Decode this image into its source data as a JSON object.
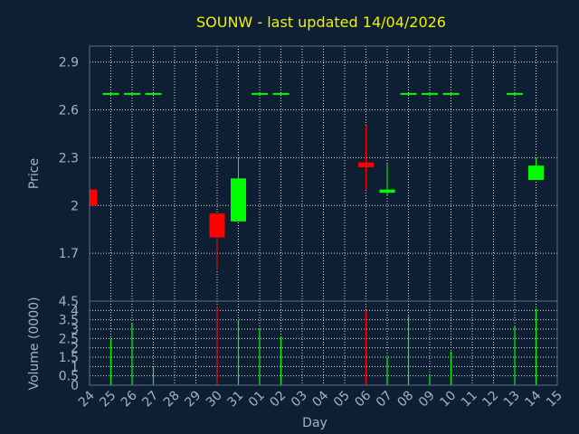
{
  "chart_data": [
    {
      "type": "candlestick",
      "title": "SOUNW - last updated 14/04/2026",
      "ylabel": "Price",
      "ylim": [
        1.4,
        3.0
      ],
      "yticks": [
        "1.7",
        "2",
        "2.3",
        "2.6",
        "2.9"
      ],
      "grid": true,
      "colors": {
        "up": "#00ff00",
        "down": "#ff0000",
        "text": "#9fb3c8",
        "title": "#f0f000",
        "background": "#0f1f33"
      },
      "candles": [
        {
          "day": "24",
          "open": 2.1,
          "high": 2.1,
          "low": 2.0,
          "close": 2.0
        },
        {
          "day": "25",
          "open": 2.7,
          "high": 2.7,
          "low": 2.7,
          "close": 2.7
        },
        {
          "day": "26",
          "open": 2.7,
          "high": 2.7,
          "low": 2.7,
          "close": 2.7
        },
        {
          "day": "27",
          "open": 2.7,
          "high": 2.7,
          "low": 2.7,
          "close": 2.7
        },
        {
          "day": "30",
          "open": 1.95,
          "high": 1.95,
          "low": 1.6,
          "close": 1.8
        },
        {
          "day": "31",
          "open": 1.9,
          "high": 2.3,
          "low": 1.9,
          "close": 2.17
        },
        {
          "day": "01",
          "open": 2.7,
          "high": 2.7,
          "low": 2.7,
          "close": 2.7
        },
        {
          "day": "02",
          "open": 2.7,
          "high": 2.7,
          "low": 2.7,
          "close": 2.7
        },
        {
          "day": "06",
          "open": 2.27,
          "high": 2.5,
          "low": 2.1,
          "close": 2.24
        },
        {
          "day": "07",
          "open": 2.08,
          "high": 2.26,
          "low": 2.06,
          "close": 2.1
        },
        {
          "day": "08",
          "open": 2.7,
          "high": 2.7,
          "low": 2.7,
          "close": 2.7
        },
        {
          "day": "09",
          "open": 2.7,
          "high": 2.7,
          "low": 2.7,
          "close": 2.7
        },
        {
          "day": "10",
          "open": 2.7,
          "high": 2.7,
          "low": 2.7,
          "close": 2.7
        },
        {
          "day": "13",
          "open": 2.7,
          "high": 2.7,
          "low": 2.7,
          "close": 2.7
        },
        {
          "day": "14",
          "open": 2.16,
          "high": 2.3,
          "low": 2.16,
          "close": 2.25
        }
      ]
    },
    {
      "type": "bar",
      "xlabel": "Day",
      "ylabel": "Volume (0000)",
      "ylim": [
        0,
        4.5
      ],
      "yticks": [
        "0",
        "0.5",
        "1",
        "1.5",
        "2",
        "2.5",
        "3",
        "3.5",
        "4",
        "4.5"
      ],
      "grid": true,
      "categories": [
        "24",
        "25",
        "26",
        "27",
        "28",
        "29",
        "30",
        "31",
        "01",
        "02",
        "03",
        "04",
        "05",
        "06",
        "07",
        "08",
        "09",
        "10",
        "11",
        "12",
        "13",
        "14",
        "15"
      ],
      "bars": [
        {
          "day": "25",
          "value": 2.5,
          "direction": "up"
        },
        {
          "day": "26",
          "value": 3.3,
          "direction": "up"
        },
        {
          "day": "27",
          "value": 1.0,
          "direction": "up"
        },
        {
          "day": "30",
          "value": 4.2,
          "direction": "down"
        },
        {
          "day": "31",
          "value": 3.5,
          "direction": "up"
        },
        {
          "day": "01",
          "value": 3.0,
          "direction": "up"
        },
        {
          "day": "02",
          "value": 2.6,
          "direction": "up"
        },
        {
          "day": "06",
          "value": 4.0,
          "direction": "down"
        },
        {
          "day": "07",
          "value": 1.5,
          "direction": "up"
        },
        {
          "day": "08",
          "value": 3.7,
          "direction": "up"
        },
        {
          "day": "09",
          "value": 0.6,
          "direction": "up"
        },
        {
          "day": "10",
          "value": 1.8,
          "direction": "up"
        },
        {
          "day": "13",
          "value": 3.2,
          "direction": "up"
        },
        {
          "day": "14",
          "value": 4.1,
          "direction": "up"
        }
      ]
    }
  ]
}
